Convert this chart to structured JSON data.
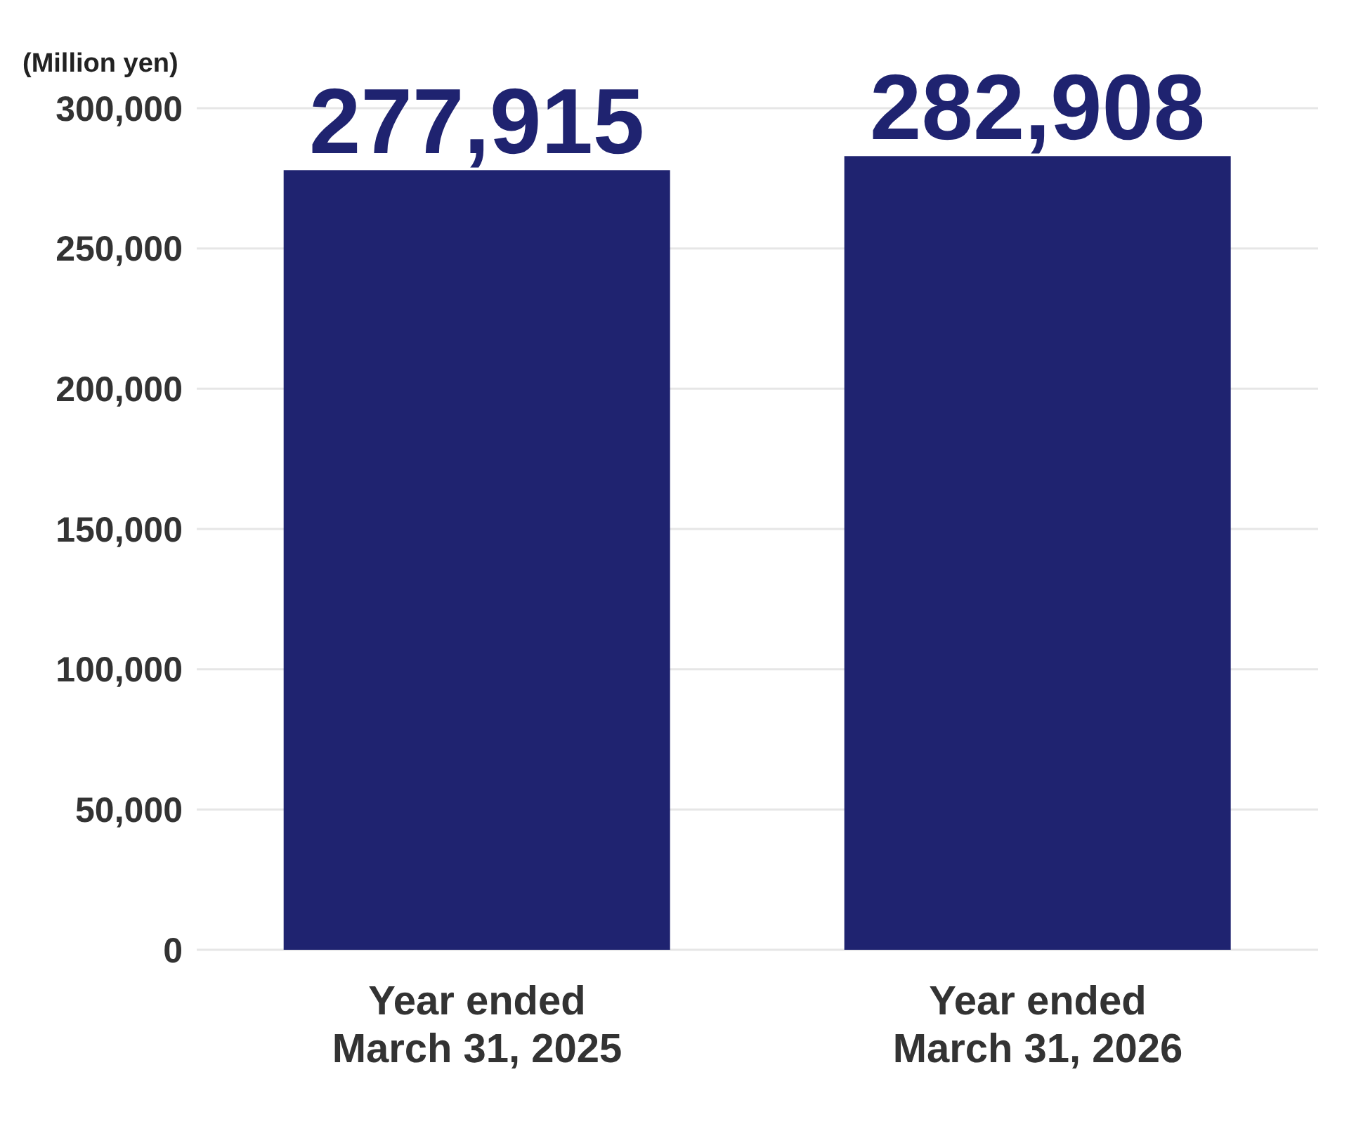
{
  "chart_data": {
    "type": "bar",
    "ylabel": "(Million yen)",
    "categories": [
      "Year ended March 31, 2025",
      "Year ended March 31, 2026"
    ],
    "values": [
      277915,
      282908
    ],
    "value_labels": [
      "277,915",
      "282,908"
    ],
    "color": "#1f2370",
    "ylim": [
      0,
      300000
    ],
    "yticks": [
      0,
      {
        "value": 50000,
        "label": "50,000"
      },
      {
        "value": 100000,
        "label": "100,000"
      },
      {
        "value": 150000,
        "label": "150,000"
      },
      {
        "value": 200000,
        "label": "200,000"
      },
      {
        "value": 250000,
        "label": "250,000"
      },
      {
        "value": 300000,
        "label": "300,000"
      }
    ],
    "grid": "y"
  }
}
